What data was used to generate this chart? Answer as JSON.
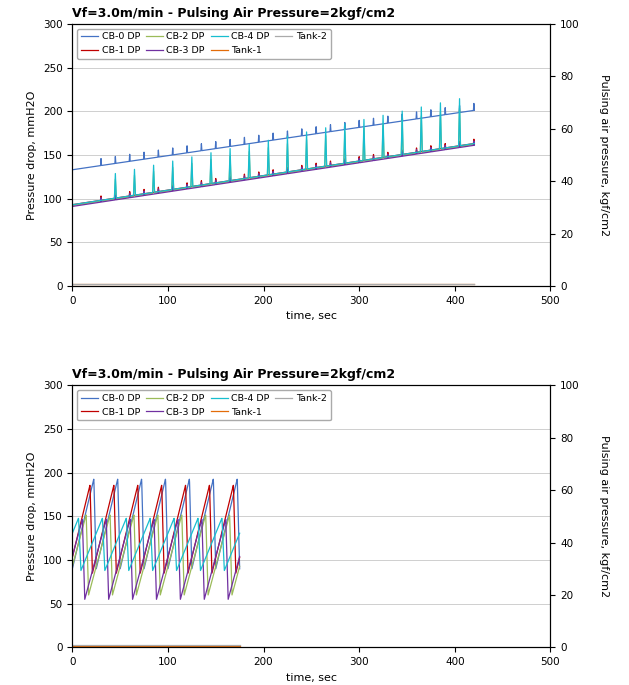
{
  "title": "Vf=3.0m/min - Pulsing Air Pressure=2kgf/cm2",
  "xlabel": "time, sec",
  "ylabel_left": "Pressure drop, mmH2O",
  "ylabel_right": "Pulsing air pressure, kgf/cm2",
  "xlim": [
    0,
    500
  ],
  "ylim_left": [
    0,
    300
  ],
  "ylim_right": [
    0,
    100
  ],
  "yticks_left": [
    0,
    50,
    100,
    150,
    200,
    250,
    300
  ],
  "yticks_right": [
    0,
    20,
    40,
    60,
    80,
    100
  ],
  "xticks": [
    0,
    100,
    200,
    300,
    400,
    500
  ],
  "legend_labels": [
    "CB-0 DP",
    "CB-1 DP",
    "CB-2 DP",
    "CB-3 DP",
    "CB-4 DP",
    "Tank-1",
    "Tank-2"
  ],
  "colors": {
    "CB-0 DP": "#4472C4",
    "CB-1 DP": "#C00000",
    "CB-2 DP": "#9BBB59",
    "CB-3 DP": "#7030A0",
    "CB-4 DP": "#17BECF",
    "Tank-1": "#E36C09",
    "Tank-2": "#AAAAAA"
  },
  "background_color": "#FFFFFF",
  "grid_color": "#C8C8C8"
}
